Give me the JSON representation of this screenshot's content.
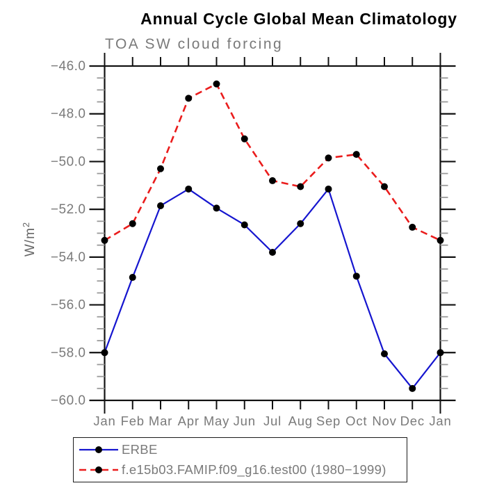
{
  "page": {
    "background": "#ffffff",
    "accent_black": "#000000"
  },
  "chart_data": {
    "type": "line",
    "title": "Annual Cycle Global Mean Climatology",
    "subtitle": "TOA SW cloud forcing",
    "ylabel_base": "W/m",
    "ylabel_exponent": "2",
    "x_tick_labels": [
      "Jan",
      "Feb",
      "Mar",
      "Apr",
      "May",
      "Jun",
      "Jul",
      "Aug",
      "Sep",
      "Oct",
      "Nov",
      "Dec",
      "Jan"
    ],
    "ylim": [
      -60.0,
      -46.0
    ],
    "y_tick_values": [
      -46.0,
      -48.0,
      -50.0,
      -52.0,
      -54.0,
      -56.0,
      -58.0,
      -60.0
    ],
    "y_tick_labels": [
      "−46.0",
      "−48.0",
      "−50.0",
      "−52.0",
      "−54.0",
      "−56.0",
      "−58.0",
      "−60.0"
    ],
    "y_minor_step": 0.5,
    "grid": false,
    "legend_position": "bottom-left-box",
    "axis_text_color": "#7a7a7a",
    "tick_color": "#111111",
    "minor_tick_color": "#9a9a9a",
    "marker_color": "#000000",
    "series": [
      {
        "name": "ERBE",
        "color": "#1515cf",
        "style": "solid",
        "marker": "filled-circle",
        "values": [
          -58.0,
          -54.85,
          -51.85,
          -51.15,
          -51.95,
          -52.65,
          -53.8,
          -52.6,
          -51.15,
          -54.8,
          -58.05,
          -59.5,
          -58.0
        ]
      },
      {
        "name": "f.e15b03.FAMIP.f09_g16.test00 (1980−1999)",
        "color": "#ea1c1c",
        "style": "dashed",
        "marker": "filled-circle",
        "values": [
          -53.3,
          -52.6,
          -50.3,
          -47.35,
          -46.75,
          -49.05,
          -50.8,
          -51.05,
          -49.85,
          -49.7,
          -51.05,
          -52.75,
          -53.3
        ]
      }
    ]
  }
}
